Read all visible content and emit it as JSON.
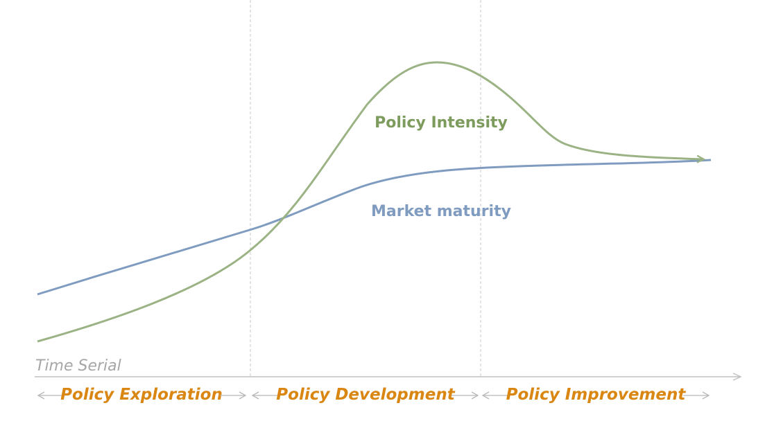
{
  "diagram": {
    "axis_label": "Time Serial",
    "curves": [
      {
        "name": "Policy Intensity",
        "color": "#9bb384"
      },
      {
        "name": "Market maturity",
        "color": "#7f9cc0"
      }
    ],
    "phases": [
      {
        "label": "Policy Exploration"
      },
      {
        "label": "Policy Development"
      },
      {
        "label": "Policy Improvement"
      }
    ],
    "colors": {
      "phase_text": "#d98612",
      "axis": "#bfbfbf",
      "divider": "#c8c8c8"
    }
  }
}
